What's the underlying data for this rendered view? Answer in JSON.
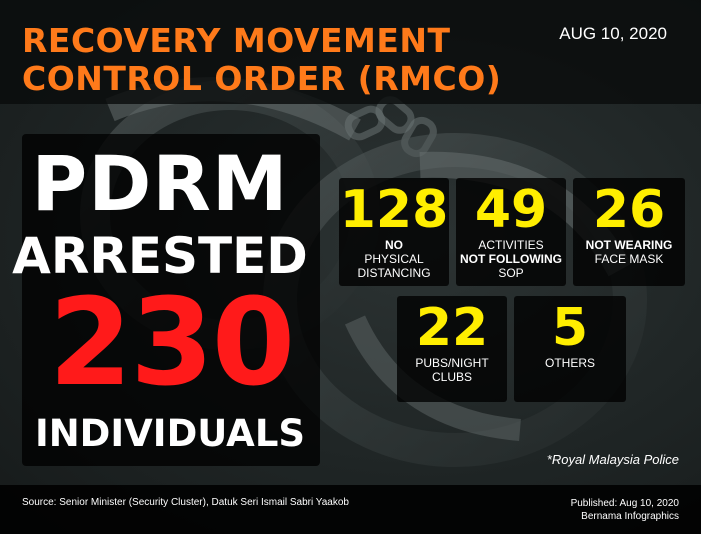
{
  "header": {
    "title_line1": "RECOVERY MOVEMENT",
    "title_line2": "CONTROL ORDER (RMCO)",
    "date": "AUG 10, 2020"
  },
  "headline": {
    "pdrm": "PDRM",
    "arrested": "ARRESTED",
    "total": "230",
    "individuals": "INDIVIDUALS"
  },
  "stats": [
    {
      "value": "128",
      "label_bold": "NO",
      "label_rest": "PHYSICAL\nDISTANCING"
    },
    {
      "value": "49",
      "label_pre": "ACTIVITIES",
      "label_bold": "NOT FOLLOWING",
      "label_rest": "SOP"
    },
    {
      "value": "26",
      "label_bold": "NOT WEARING",
      "label_rest": "FACE MASK"
    },
    {
      "value": "22",
      "label_rest": "PUBS/NIGHT\nCLUBS"
    },
    {
      "value": "5",
      "label_rest": "OTHERS"
    }
  ],
  "source_note": "*Royal Malaysia Police",
  "footer": {
    "source": "Source: Senior Minister (Security Cluster), Datuk Seri Ismail Sabri Yaakob",
    "published": "Published: Aug 10,  2020",
    "credit": "Bernama Infographics"
  },
  "colors": {
    "title": "#ff7a1a",
    "total": "#ff1a1a",
    "stat_number": "#ffee00",
    "background": "#1f2525"
  },
  "icons": [
    "handcuffs-illustration"
  ]
}
